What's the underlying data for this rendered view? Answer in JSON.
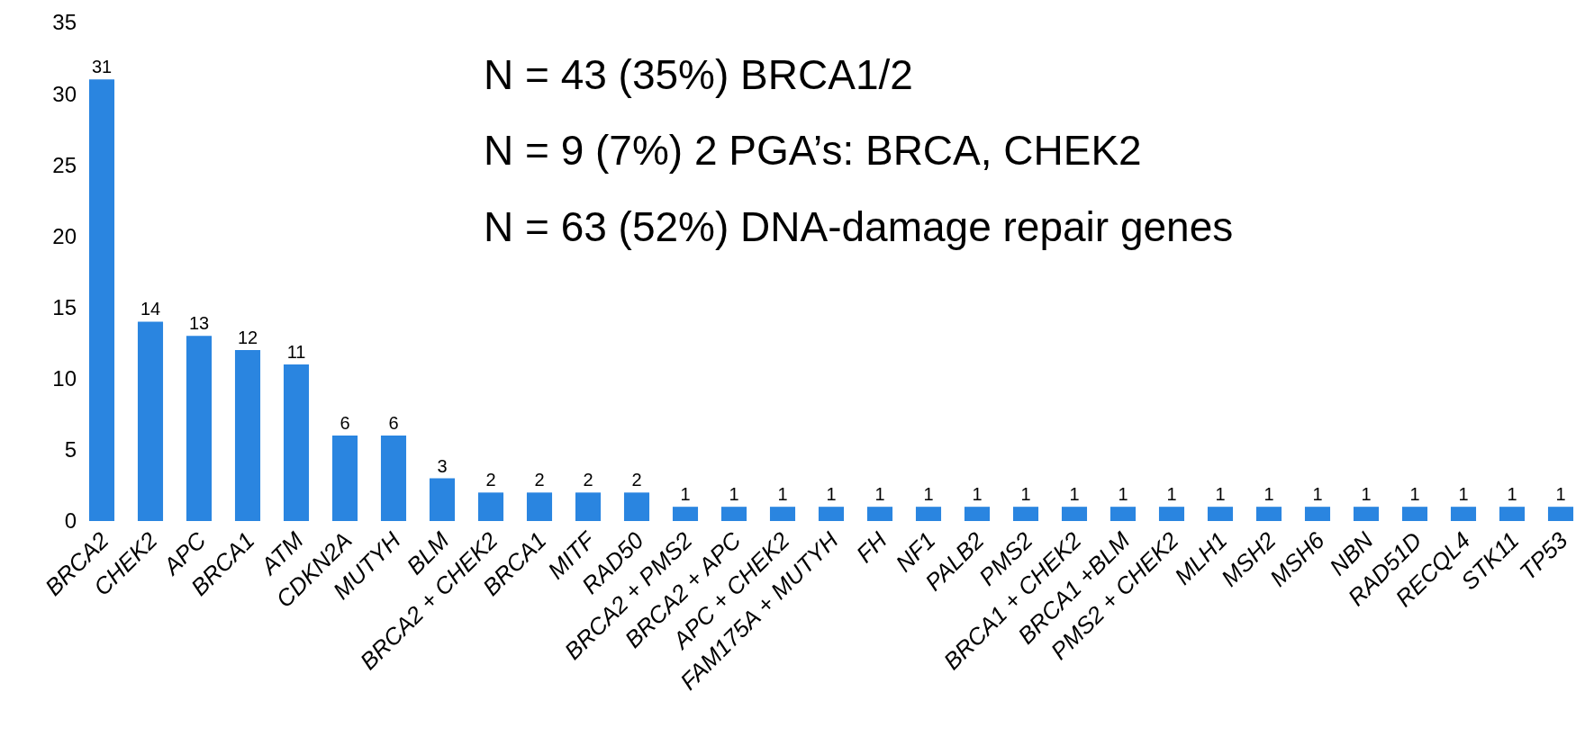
{
  "chart_data": {
    "type": "bar",
    "categories": [
      "BRCA2",
      "CHEK2",
      "APC",
      "BRCA1",
      "ATM",
      "CDKN2A",
      "MUTYH",
      "BLM",
      "BRCA2 + CHEK2",
      "BRCA1",
      "MITF",
      "RAD50",
      "BRCA2 + PMS2",
      "BRCA2 + APC",
      "APC + CHEK2",
      "FAM175A + MUTYH",
      "FH",
      "NF1",
      "PALB2",
      "PMS2",
      "BRCA1 + CHEK2",
      "BRCA1 +BLM",
      "PMS2 + CHEK2",
      "MLH1",
      "MSH2",
      "MSH6",
      "NBN",
      "RAD51D",
      "RECQL4",
      "STK11",
      "TP53"
    ],
    "values": [
      31,
      14,
      13,
      12,
      11,
      6,
      6,
      3,
      2,
      2,
      2,
      2,
      1,
      1,
      1,
      1,
      1,
      1,
      1,
      1,
      1,
      1,
      1,
      1,
      1,
      1,
      1,
      1,
      1,
      1,
      1
    ],
    "color": "#2a85e0",
    "ylim": [
      0,
      35
    ],
    "yticks": [
      0,
      5,
      10,
      15,
      20,
      25,
      30,
      35
    ],
    "data_labels": true,
    "annotations": [
      "N = 43 (35%) BRCA1/2",
      "N = 9 (7%) 2 PGA’s: BRCA, CHEK2",
      "N = 63 (52%) DNA-damage repair genes"
    ]
  }
}
